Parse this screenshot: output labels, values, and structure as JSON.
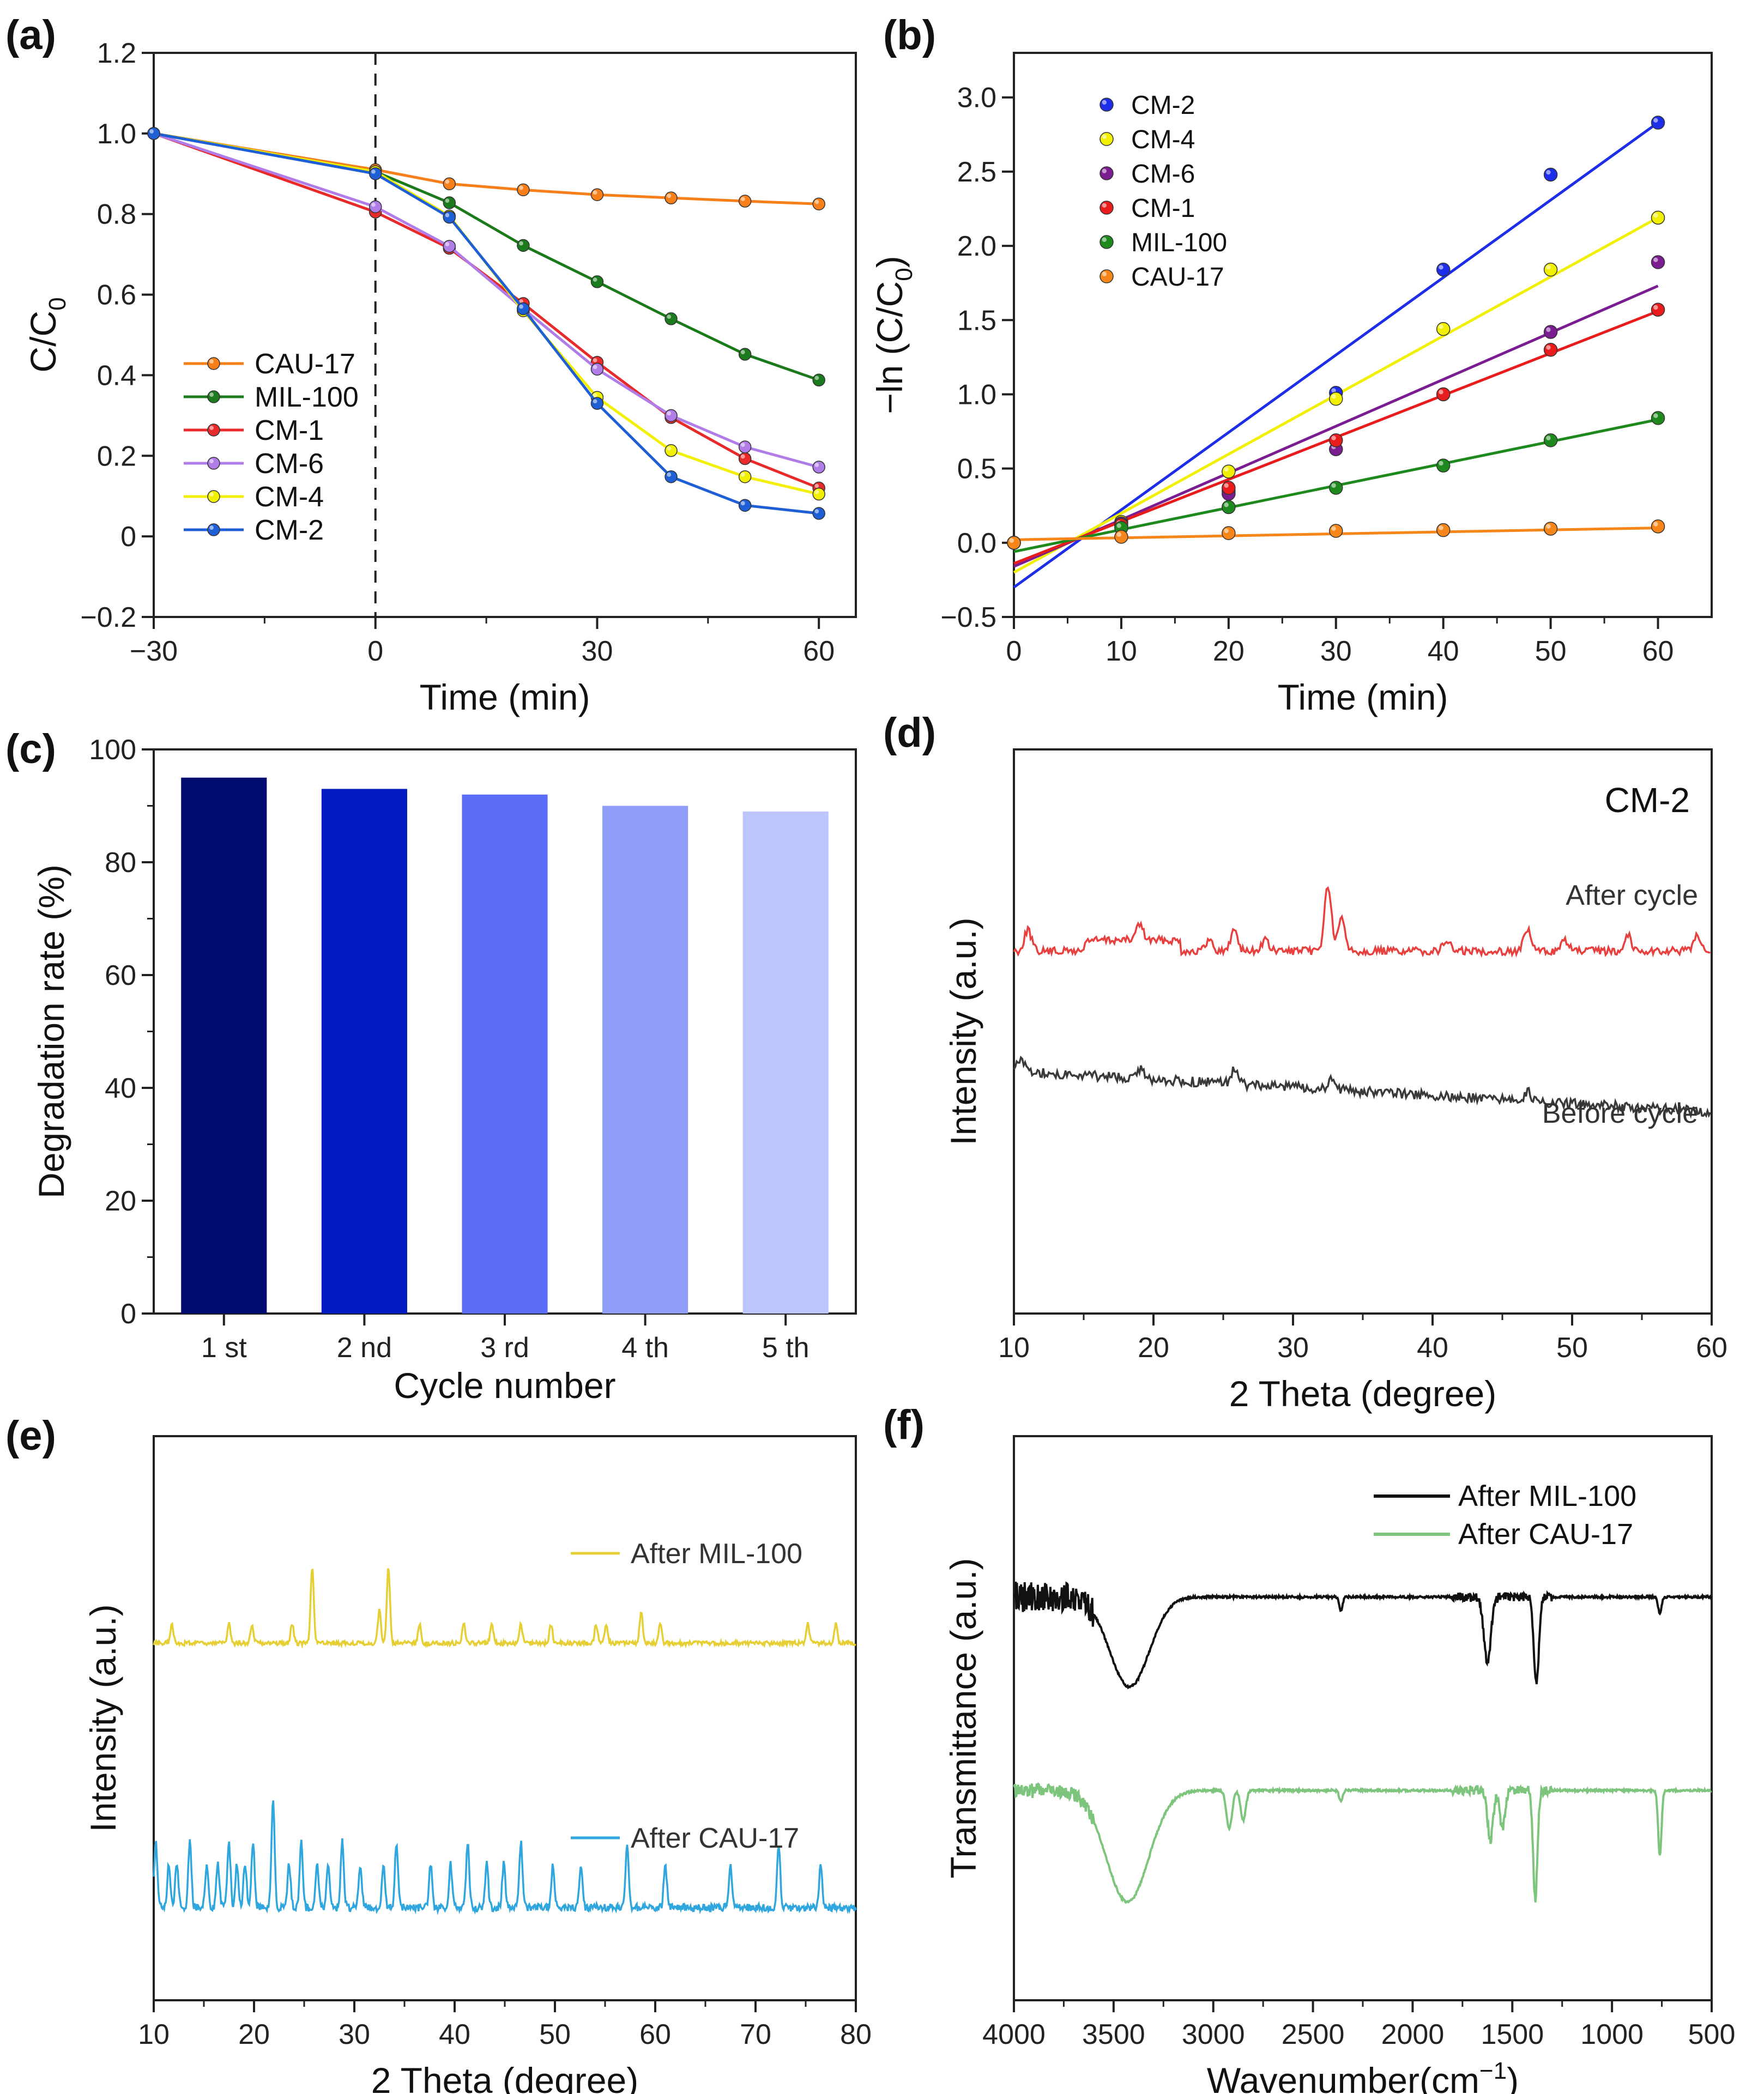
{
  "figure": {
    "panel_labels": [
      "(a)",
      "(b)",
      "(c)",
      "(d)",
      "(e)",
      "(f)"
    ]
  },
  "chart_data": [
    {
      "id": "a",
      "type": "line",
      "xlabel": "Time (min)",
      "ylabel": "C/C",
      "ylabel_sub": "0",
      "xlim": [
        -30,
        65
      ],
      "ylim": [
        -0.2,
        1.2
      ],
      "xticks": [
        -30,
        0,
        30,
        60
      ],
      "xtick_labels": [
        "−30",
        "0",
        "30",
        "60"
      ],
      "yticks": [
        -0.2,
        0,
        0.2,
        0.4,
        0.6,
        0.8,
        1.0,
        1.2
      ],
      "ytick_labels": [
        "−0.2",
        "0",
        "0.2",
        "0.4",
        "0.6",
        "0.8",
        "1.0",
        "1.2"
      ],
      "dashed_vline_x": 0,
      "legend_position": "lower-left",
      "x": [
        -30,
        0,
        10,
        20,
        30,
        40,
        50,
        60
      ],
      "series": [
        {
          "name": "CAU-17",
          "color": "#f77f1a",
          "values": [
            1.0,
            0.91,
            0.875,
            0.86,
            0.848,
            0.84,
            0.832,
            0.825
          ]
        },
        {
          "name": "MIL-100",
          "color": "#1b7a1b",
          "values": [
            1.0,
            0.905,
            0.828,
            0.722,
            0.632,
            0.54,
            0.452,
            0.388
          ]
        },
        {
          "name": "CM-1",
          "color": "#e82a2a",
          "values": [
            1.0,
            0.805,
            0.715,
            0.578,
            0.432,
            0.295,
            0.193,
            0.12
          ]
        },
        {
          "name": "CM-6",
          "color": "#b07ce8",
          "values": [
            1.0,
            0.818,
            0.72,
            0.565,
            0.415,
            0.3,
            0.222,
            0.172
          ]
        },
        {
          "name": "CM-4",
          "color": "#f2f000",
          "values": [
            1.0,
            0.905,
            0.795,
            0.56,
            0.345,
            0.213,
            0.148,
            0.105
          ]
        },
        {
          "name": "CM-2",
          "color": "#1f5fd6",
          "values": [
            1.0,
            0.9,
            0.792,
            0.565,
            0.33,
            0.148,
            0.077,
            0.057
          ]
        }
      ]
    },
    {
      "id": "b",
      "type": "scatter",
      "xlabel": "Time (min)",
      "ylabel": "−ln (C/C",
      "ylabel_sub": "0",
      "ylabel_tail": ")",
      "xlim": [
        0,
        65
      ],
      "ylim": [
        -0.5,
        3.3
      ],
      "xticks": [
        0,
        10,
        20,
        30,
        40,
        50,
        60
      ],
      "xtick_labels": [
        "0",
        "10",
        "20",
        "30",
        "40",
        "50",
        "60"
      ],
      "yticks": [
        -0.5,
        0.0,
        0.5,
        1.0,
        1.5,
        2.0,
        2.5,
        3.0
      ],
      "ytick_labels": [
        "−0.5",
        "0.0",
        "0.5",
        "1.0",
        "1.5",
        "2.0",
        "2.5",
        "3.0"
      ],
      "legend_position": "top-left",
      "x": [
        0,
        10,
        20,
        30,
        40,
        50,
        60
      ],
      "series": [
        {
          "name": "CM-2",
          "color": "#1d2de8",
          "values": [
            0.0,
            0.11,
            0.35,
            1.01,
            1.84,
            2.48,
            2.83
          ],
          "fit": [
            -0.3,
            2.83
          ]
        },
        {
          "name": "CM-4",
          "color": "#f0f000",
          "values": [
            0.0,
            0.14,
            0.48,
            0.97,
            1.44,
            1.84,
            2.19
          ],
          "fit": [
            -0.2,
            2.19
          ]
        },
        {
          "name": "CM-6",
          "color": "#7a1d91",
          "values": [
            0.0,
            0.13,
            0.33,
            0.63,
            1.0,
            1.42,
            1.89
          ],
          "fit": [
            -0.16,
            1.73
          ]
        },
        {
          "name": "CM-1",
          "color": "#e81c1c",
          "values": [
            0.0,
            0.12,
            0.37,
            0.69,
            1.0,
            1.3,
            1.57
          ],
          "fit": [
            -0.14,
            1.56
          ]
        },
        {
          "name": "MIL-100",
          "color": "#1e8a1e",
          "values": [
            0.0,
            0.1,
            0.24,
            0.37,
            0.52,
            0.69,
            0.84
          ],
          "fit": [
            -0.06,
            0.83
          ]
        },
        {
          "name": "CAU-17",
          "color": "#f7861a",
          "values": [
            0.0,
            0.04,
            0.065,
            0.08,
            0.085,
            0.095,
            0.11
          ],
          "fit": [
            0.02,
            0.1
          ]
        }
      ]
    },
    {
      "id": "c",
      "type": "bar",
      "xlabel": "Cycle number",
      "ylabel": "Degradation rate (%)",
      "categories": [
        "1 st",
        "2 nd",
        "3 rd",
        "4 th",
        "5 th"
      ],
      "values": [
        95,
        93,
        92,
        90,
        89
      ],
      "colors": [
        "#000c6e",
        "#031bc3",
        "#5b6cf6",
        "#8f9cf8",
        "#bcc5fc"
      ],
      "ylim": [
        0,
        100
      ],
      "yticks": [
        0,
        20,
        40,
        60,
        80,
        100
      ],
      "ytick_labels": [
        "0",
        "20",
        "40",
        "60",
        "80",
        "100"
      ]
    },
    {
      "id": "d",
      "type": "line",
      "title": "CM-2",
      "xlabel": "2 Theta (degree)",
      "ylabel": "Intensity (a.u.)",
      "xlim": [
        10,
        60
      ],
      "xticks": [
        10,
        20,
        30,
        40,
        50,
        60
      ],
      "xtick_labels": [
        "10",
        "20",
        "30",
        "40",
        "50",
        "60"
      ],
      "series": [
        {
          "name": "After cycle",
          "color": "#e8403f",
          "peaks_2theta": [
            11,
            19,
            24,
            25.8,
            28,
            32.5,
            33.5,
            41,
            46.8,
            49.5,
            54,
            59
          ]
        },
        {
          "name": "Before cycle",
          "color": "#3a3a3a",
          "peaks_2theta": [
            10.5,
            19,
            25.8,
            32.7,
            46.8
          ]
        }
      ]
    },
    {
      "id": "e",
      "type": "line",
      "xlabel": "2 Theta (degree)",
      "ylabel": "Intensity (a.u.)",
      "xlim": [
        10,
        80
      ],
      "xticks": [
        10,
        20,
        30,
        40,
        50,
        60,
        70,
        80
      ],
      "xtick_labels": [
        "10",
        "20",
        "30",
        "40",
        "50",
        "60",
        "70",
        "80"
      ],
      "series": [
        {
          "name": "After MIL-100",
          "color": "#e6cf34",
          "peaks_2theta": [
            11.8,
            17.5,
            19.8,
            23.8,
            25.8,
            32.5,
            33.4,
            36.5,
            40.9,
            43.7,
            46.6,
            49.6,
            54.1,
            55.1,
            58.6,
            60.5,
            75.2,
            78
          ]
        },
        {
          "name": "After CAU-17",
          "color": "#2fa6dd",
          "peaks_2theta": [
            10.2,
            11.5,
            12.3,
            13.6,
            15.3,
            16.4,
            17.5,
            18.3,
            19.1,
            19.9,
            21.9,
            23.5,
            24.7,
            26.3,
            27.4,
            28.8,
            30.6,
            32.9,
            34.2,
            37.6,
            39.6,
            41.3,
            43.2,
            44.9,
            46.6,
            49.8,
            52.6,
            57.2,
            61,
            67.5,
            72.3,
            76.5
          ]
        }
      ]
    },
    {
      "id": "f",
      "type": "line",
      "xlabel": "Wavenumber(cm",
      "xlabel_sup": "−1",
      "xlabel_tail": ")",
      "ylabel": "Transmittance (a.u.)",
      "xlim": [
        4000,
        500
      ],
      "xticks": [
        4000,
        3500,
        3000,
        2500,
        2000,
        1500,
        1000,
        500
      ],
      "xtick_labels": [
        "4000",
        "3500",
        "3000",
        "2500",
        "2000",
        "1500",
        "1000",
        "500"
      ],
      "series": [
        {
          "name": "After MIL-100",
          "color": "#111111",
          "bands_cm1": [
            3420,
            2360,
            1625,
            1380,
            760
          ]
        },
        {
          "name": "After CAU-17",
          "color": "#7dc47d",
          "bands_cm1": [
            3430,
            2920,
            2850,
            2360,
            1610,
            1550,
            1385,
            760
          ]
        }
      ]
    }
  ]
}
